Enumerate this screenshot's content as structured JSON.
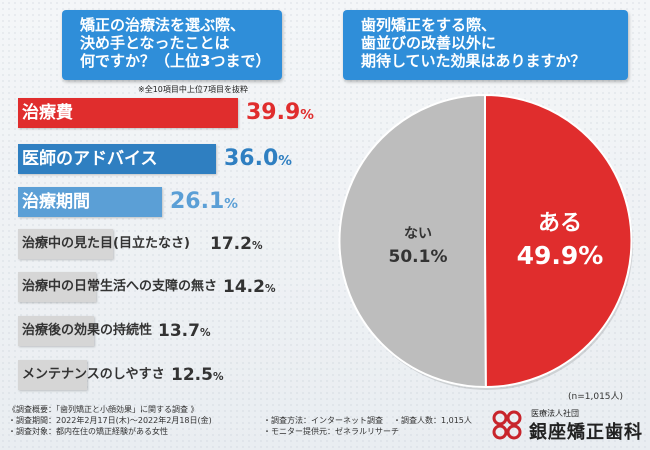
{
  "chart_data": [
    {
      "type": "bar",
      "title": "矯正の治療法を選ぶ際、決め手となったことは何ですか？（上位3つまで）",
      "note": "※全10項目中上位7項目を抜粋",
      "categories": [
        "治療費",
        "医師のアドバイス",
        "治療期間",
        "治療中の見た目(目立たなさ)",
        "治療中の日常生活への支障の無さ",
        "治療後の効果の持続性",
        "メンテナンスのしやすさ"
      ],
      "values": [
        39.9,
        36.0,
        26.1,
        17.2,
        14.2,
        13.7,
        12.5
      ],
      "unit": "%"
    },
    {
      "type": "pie",
      "title": "歯列矯正をする際、歯並びの改善以外に期待していた効果はありますか？",
      "labels": [
        "ある",
        "ない"
      ],
      "values": [
        49.9,
        50.1
      ],
      "unit": "%",
      "n": "(n=1,015人)"
    }
  ],
  "colors": {
    "header": "#2f8ed9",
    "bar_red": "#e02d2d",
    "bar_blue1": "#2f7fc1",
    "bar_blue2": "#5b9fd6",
    "bar_gray": "#d6d6d6",
    "pie_red": "#e02d2d",
    "pie_gray": "#bdbdbd"
  },
  "q1": {
    "lines": [
      "矯正の治療法を選ぶ際、",
      "決め手となったことは",
      "何ですか？（上位3つまで）"
    ]
  },
  "q2": {
    "lines": [
      "歯列矯正をする際、",
      "歯並びの改善以外に",
      "期待していた効果はありますか？"
    ]
  },
  "bars": [
    {
      "label": "治療費",
      "value": "39.9",
      "pct": "%"
    },
    {
      "label": "医師のアドバイス",
      "value": "36.0",
      "pct": "%"
    },
    {
      "label": "治療期間",
      "value": "26.1",
      "pct": "%"
    },
    {
      "label": "治療中の見た目(目立たなさ)",
      "value": "17.2",
      "pct": "%"
    },
    {
      "label": "治療中の日常生活への支障の無さ",
      "value": "14.2",
      "pct": "%"
    },
    {
      "label": "治療後の効果の持続性",
      "value": "13.7",
      "pct": "%"
    },
    {
      "label": "メンテナンスのしやすさ",
      "value": "12.5",
      "pct": "%"
    }
  ],
  "pie": {
    "aru_label": "ある",
    "aru_value": "49.9%",
    "nai_label": "ない",
    "nai_value": "50.1%"
  },
  "footer": {
    "l1": "《調査概要：「歯列矯正と小顔効果」に関する調査 》",
    "l2": "・調査期間：2022年2月17日(木)〜2022年2月18日(金)",
    "l3": "・調査対象：都内在住の矯正経験がある女性",
    "m1": "・調査方法：インターネット調査",
    "m2": "・モニター提供元：ゼネラルリサーチ",
    "r1": "・調査人数：1,015人"
  },
  "logo": {
    "sub": "医療法人社団",
    "name": "銀座矯正歯科"
  }
}
